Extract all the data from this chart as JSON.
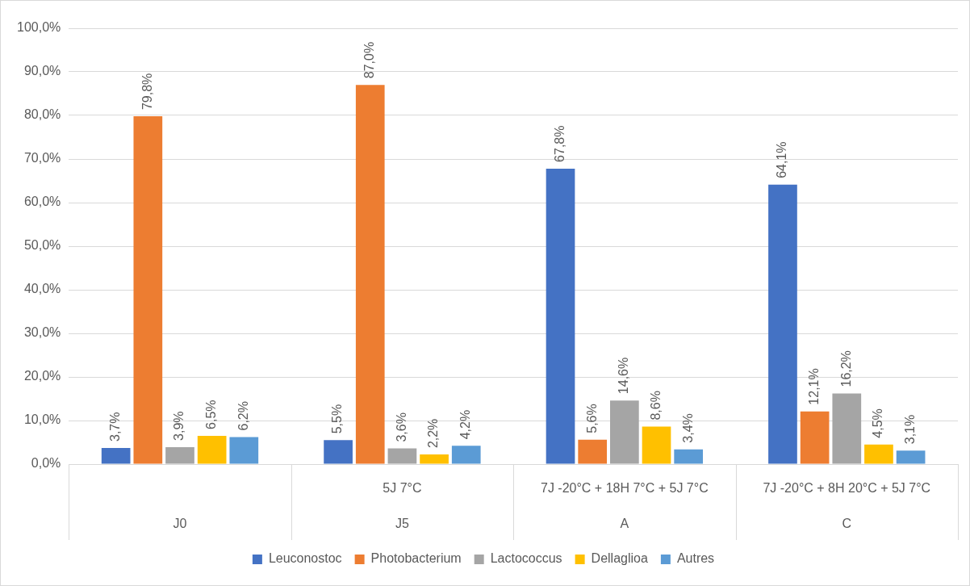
{
  "chart_data": {
    "type": "bar",
    "categories": [
      "J0",
      "J5",
      "A",
      "C"
    ],
    "annotations": [
      "5J 7°C",
      "7J -20°C + 18H 7°C + 5J 7°C",
      "7J -20°C + 8H 20°C + 5J 7°C"
    ],
    "series": [
      {
        "name": "Leuconostoc",
        "color": "#4472c4",
        "values": [
          3.7,
          5.5,
          67.8,
          64.1
        ],
        "value_labels": [
          "3,7%",
          "5,5%",
          "67,8%",
          "64,1%"
        ]
      },
      {
        "name": "Photobacterium",
        "color": "#ed7d31",
        "values": [
          79.8,
          87.0,
          5.6,
          12.1
        ],
        "value_labels": [
          "79,8%",
          "87,0%",
          "5,6%",
          "12,1%"
        ]
      },
      {
        "name": "Lactococcus",
        "color": "#a5a5a5",
        "values": [
          3.9,
          3.6,
          14.6,
          16.2
        ],
        "value_labels": [
          "3,9%",
          "3,6%",
          "14,6%",
          "16,2%"
        ]
      },
      {
        "name": "Dellaglioa",
        "color": "#ffc000",
        "values": [
          6.5,
          2.2,
          8.6,
          4.5
        ],
        "value_labels": [
          "6,5%",
          "2,2%",
          "8,6%",
          "4,5%"
        ]
      },
      {
        "name": "Autres",
        "color": "#5b9bd5",
        "values": [
          6.2,
          4.2,
          3.4,
          3.1
        ],
        "value_labels": [
          "6,2%",
          "4,2%",
          "3,4%",
          "3,1%"
        ]
      }
    ],
    "ylim": [
      0,
      100
    ],
    "yticks": [
      {
        "value": 0,
        "label": "0,0%"
      },
      {
        "value": 10,
        "label": "10,0%"
      },
      {
        "value": 20,
        "label": "20,0%"
      },
      {
        "value": 30,
        "label": "30,0%"
      },
      {
        "value": 40,
        "label": "40,0%"
      },
      {
        "value": 50,
        "label": "50,0%"
      },
      {
        "value": 60,
        "label": "60,0%"
      },
      {
        "value": 70,
        "label": "70,0%"
      },
      {
        "value": 80,
        "label": "80,0%"
      },
      {
        "value": 90,
        "label": "90,0%"
      },
      {
        "value": 100,
        "label": "100,0%"
      }
    ],
    "grid": "y",
    "legend": "bottom"
  }
}
